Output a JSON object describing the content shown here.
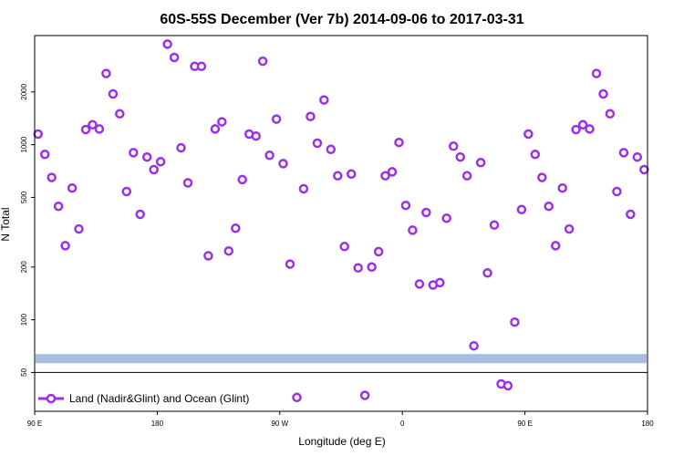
{
  "chart_data": {
    "type": "scatter",
    "title": "60S-55S December (Ver 7b)   2014-09-06 to 2017-03-31",
    "xlabel": "Longitude (deg E)",
    "ylabel": "N Total",
    "x_ticks": [
      {
        "value": 90,
        "label": "90 E"
      },
      {
        "value": 180,
        "label": "180"
      },
      {
        "value": 270,
        "label": "90 W"
      },
      {
        "value": 360,
        "label": "0"
      },
      {
        "value": 450,
        "label": "90 E"
      },
      {
        "value": 540,
        "label": "180"
      }
    ],
    "y_ticks": [
      {
        "value": 50,
        "label": "50"
      },
      {
        "value": 100,
        "label": "100"
      },
      {
        "value": 200,
        "label": "200"
      },
      {
        "value": 500,
        "label": "500"
      },
      {
        "value": 1000,
        "label": "1000"
      },
      {
        "value": 2000,
        "label": "2000"
      }
    ],
    "xlim": [
      90,
      540
    ],
    "ylim": [
      30,
      4200
    ],
    "y_scale": "log",
    "grid": false,
    "legend": {
      "position": "bottom-left",
      "entries": [
        "Land (Nadir&Glint) and Ocean (Glint)"
      ]
    },
    "reference_band": {
      "value": 60,
      "color": "#a8bde0"
    },
    "series": [
      {
        "name": "Land (Nadir&Glint) and Ocean (Glint)",
        "color": "#9b30e8",
        "points": [
          [
            92.5,
            1150
          ],
          [
            97.5,
            880
          ],
          [
            102.5,
            650
          ],
          [
            107.5,
            445
          ],
          [
            112.5,
            265
          ],
          [
            117.5,
            565
          ],
          [
            122.5,
            330
          ],
          [
            127.5,
            1220
          ],
          [
            132.5,
            1300
          ],
          [
            137.5,
            1230
          ],
          [
            142.5,
            2550
          ],
          [
            147.5,
            1950
          ],
          [
            152.5,
            1500
          ],
          [
            157.5,
            540
          ],
          [
            162.5,
            900
          ],
          [
            167.5,
            400
          ],
          [
            172.5,
            850
          ],
          [
            177.5,
            720
          ],
          [
            182.5,
            800
          ],
          [
            187.5,
            3750
          ],
          [
            192.5,
            3150
          ],
          [
            197.5,
            960
          ],
          [
            202.5,
            605
          ],
          [
            207.5,
            2800
          ],
          [
            212.5,
            2800
          ],
          [
            217.5,
            232
          ],
          [
            222.5,
            1230
          ],
          [
            227.5,
            1350
          ],
          [
            232.5,
            247
          ],
          [
            237.5,
            333
          ],
          [
            242.5,
            632
          ],
          [
            247.5,
            1150
          ],
          [
            252.5,
            1120
          ],
          [
            257.5,
            3000
          ],
          [
            262.5,
            870
          ],
          [
            267.5,
            1400
          ],
          [
            272.5,
            780
          ],
          [
            277.5,
            208
          ],
          [
            282.5,
            36
          ],
          [
            287.5,
            560
          ],
          [
            292.5,
            1450
          ],
          [
            297.5,
            1020
          ],
          [
            302.5,
            1800
          ],
          [
            307.5,
            940
          ],
          [
            312.5,
            665
          ],
          [
            317.5,
            262
          ],
          [
            322.5,
            680
          ],
          [
            327.5,
            198
          ],
          [
            332.5,
            37
          ],
          [
            337.5,
            200
          ],
          [
            342.5,
            245
          ],
          [
            347.5,
            665
          ],
          [
            352.5,
            700
          ],
          [
            357.5,
            1030
          ],
          [
            362.5,
            450
          ],
          [
            367.5,
            325
          ],
          [
            372.5,
            160
          ],
          [
            377.5,
            410
          ],
          [
            382.5,
            158
          ],
          [
            387.5,
            163
          ],
          [
            392.5,
            380
          ],
          [
            397.5,
            980
          ],
          [
            402.5,
            850
          ],
          [
            407.5,
            665
          ],
          [
            412.5,
            71
          ],
          [
            417.5,
            790
          ],
          [
            422.5,
            185
          ],
          [
            427.5,
            348
          ],
          [
            432.5,
            43
          ],
          [
            437.5,
            42
          ],
          [
            442.5,
            97
          ],
          [
            447.5,
            426
          ],
          [
            452.5,
            1150
          ],
          [
            457.5,
            880
          ],
          [
            462.5,
            650
          ],
          [
            467.5,
            445
          ],
          [
            472.5,
            265
          ],
          [
            477.5,
            565
          ],
          [
            482.5,
            330
          ],
          [
            487.5,
            1220
          ],
          [
            492.5,
            1300
          ],
          [
            497.5,
            1230
          ],
          [
            502.5,
            2550
          ],
          [
            507.5,
            1950
          ],
          [
            512.5,
            1500
          ],
          [
            517.5,
            540
          ],
          [
            522.5,
            900
          ],
          [
            527.5,
            400
          ],
          [
            532.5,
            850
          ],
          [
            537.5,
            720
          ]
        ]
      }
    ]
  }
}
